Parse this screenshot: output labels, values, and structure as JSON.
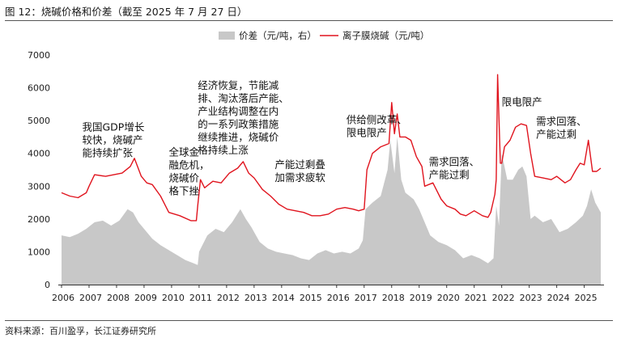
{
  "figure": {
    "title": "图 12：烧碱价格和价差（截至 2025 年 7 月 27 日）",
    "source": "资料来源：百川盈孚，长江证券研究所"
  },
  "chart_data": {
    "type": "area",
    "ylim": [
      0,
      7000
    ],
    "yticks": [
      0,
      1000,
      2000,
      3000,
      4000,
      5000,
      6000,
      7000
    ],
    "xlim": [
      2006.0,
      2025.6
    ],
    "xticks": [
      "2006",
      "2007",
      "2008",
      "2009",
      "2010",
      "2011",
      "2012",
      "2013",
      "2014",
      "2015",
      "2016",
      "2017",
      "2018",
      "2019",
      "2020",
      "2021",
      "2022",
      "2023",
      "2024",
      "2025"
    ],
    "legend_position": "top",
    "series": [
      {
        "name": "价差（元/吨，右）",
        "type": "area",
        "color": "#c8c8c8",
        "x": [
          2006.0,
          2006.3,
          2006.6,
          2006.9,
          2007.2,
          2007.5,
          2007.8,
          2008.1,
          2008.4,
          2008.6,
          2008.8,
          2009.0,
          2009.3,
          2009.6,
          2009.9,
          2010.2,
          2010.5,
          2010.8,
          2010.95,
          2011.0,
          2011.3,
          2011.6,
          2011.9,
          2012.2,
          2012.5,
          2012.7,
          2012.9,
          2013.2,
          2013.5,
          2013.8,
          2014.1,
          2014.4,
          2014.7,
          2015.0,
          2015.3,
          2015.6,
          2015.9,
          2016.2,
          2016.5,
          2016.8,
          2016.95,
          2017.05,
          2017.3,
          2017.6,
          2017.85,
          2017.95,
          2018.1,
          2018.2,
          2018.35,
          2018.5,
          2018.8,
          2019.0,
          2019.2,
          2019.4,
          2019.7,
          2020.0,
          2020.3,
          2020.6,
          2020.9,
          2021.2,
          2021.5,
          2021.7,
          2021.8,
          2021.9,
          2022.0,
          2022.2,
          2022.4,
          2022.6,
          2022.75,
          2022.9,
          2023.05,
          2023.2,
          2023.5,
          2023.8,
          2024.1,
          2024.4,
          2024.7,
          2024.95,
          2025.1,
          2025.25,
          2025.4,
          2025.6
        ],
        "values": [
          1500,
          1450,
          1550,
          1700,
          1900,
          1950,
          1800,
          1950,
          2300,
          2200,
          1900,
          1700,
          1400,
          1200,
          1050,
          900,
          750,
          650,
          600,
          1000,
          1500,
          1700,
          1600,
          1900,
          2300,
          2000,
          1750,
          1300,
          1100,
          1000,
          950,
          900,
          800,
          750,
          950,
          1050,
          950,
          1000,
          950,
          1100,
          1350,
          2300,
          2500,
          2700,
          3500,
          4400,
          3400,
          4500,
          3200,
          2800,
          2600,
          2300,
          1900,
          1500,
          1300,
          1200,
          1050,
          800,
          900,
          800,
          650,
          800,
          2400,
          1800,
          4000,
          3200,
          3200,
          3500,
          3600,
          3300,
          2000,
          2100,
          1900,
          2000,
          1600,
          1700,
          1900,
          2100,
          2400,
          2900,
          2500,
          2200
        ]
      },
      {
        "name": "离子膜烧碱（元/吨）",
        "type": "line",
        "color": "#e0141e",
        "x": [
          2006.0,
          2006.3,
          2006.6,
          2006.9,
          2007.0,
          2007.2,
          2007.6,
          2007.9,
          2008.2,
          2008.5,
          2008.65,
          2008.9,
          2009.1,
          2009.3,
          2009.6,
          2009.9,
          2010.3,
          2010.7,
          2010.9,
          2010.95,
          2011.05,
          2011.2,
          2011.5,
          2011.8,
          2012.1,
          2012.4,
          2012.6,
          2012.8,
          2013.0,
          2013.3,
          2013.6,
          2013.9,
          2014.2,
          2014.5,
          2014.8,
          2015.1,
          2015.4,
          2015.7,
          2016.0,
          2016.3,
          2016.6,
          2016.8,
          2017.0,
          2017.1,
          2017.3,
          2017.6,
          2017.9,
          2018.0,
          2018.1,
          2018.2,
          2018.3,
          2018.5,
          2018.7,
          2018.9,
          2019.1,
          2019.2,
          2019.5,
          2019.8,
          2020.0,
          2020.3,
          2020.5,
          2020.7,
          2021.0,
          2021.3,
          2021.5,
          2021.6,
          2021.75,
          2021.8,
          2021.85,
          2021.95,
          2022.0,
          2022.1,
          2022.3,
          2022.5,
          2022.7,
          2022.9,
          2023.05,
          2023.2,
          2023.5,
          2023.8,
          2024.0,
          2024.3,
          2024.5,
          2024.7,
          2024.85,
          2025.0,
          2025.15,
          2025.3,
          2025.45,
          2025.6
        ],
        "values": [
          2800,
          2700,
          2650,
          2800,
          3000,
          3350,
          3300,
          3350,
          3400,
          3600,
          3850,
          3300,
          3100,
          3050,
          2700,
          2200,
          2100,
          1950,
          1950,
          2400,
          3200,
          2950,
          3150,
          3100,
          3400,
          3550,
          3750,
          3400,
          3250,
          2900,
          2700,
          2450,
          2300,
          2250,
          2200,
          2100,
          2100,
          2150,
          2300,
          2350,
          2300,
          2250,
          2300,
          3500,
          4000,
          4200,
          4300,
          5550,
          4600,
          5200,
          4500,
          4500,
          4400,
          3900,
          3600,
          3000,
          3100,
          2600,
          2400,
          2300,
          2150,
          2100,
          2250,
          2100,
          2050,
          2200,
          2750,
          3200,
          6400,
          3700,
          3700,
          4200,
          4400,
          4800,
          4900,
          4850,
          4000,
          3300,
          3250,
          3200,
          3300,
          3100,
          3200,
          3500,
          3700,
          3650,
          4400,
          3450,
          3450,
          3550
        ]
      }
    ],
    "annotations": [
      {
        "lines": [
          "我国GDP增长",
          "较快，烧碱产",
          "能持续扩张"
        ],
        "x": 2006.75,
        "y": 4700
      },
      {
        "lines": [
          "全球金",
          "融危机，",
          "烧碱价",
          "格下挫"
        ],
        "x": 2009.9,
        "y": 3930
      },
      {
        "lines": [
          "经济恢复，节能减",
          "排、淘汰落后产能、",
          "产业结构调整在内",
          "的一系列政策措施",
          "继续推进，烧碱价",
          "格持续上涨"
        ],
        "x": 2010.95,
        "y": 5970
      },
      {
        "lines": [
          "产能过剩叠",
          "加需求疲软"
        ],
        "x": 2013.75,
        "y": 3550
      },
      {
        "lines": [
          "供给侧改革、",
          "限电限产"
        ],
        "x": 2016.35,
        "y": 4920
      },
      {
        "lines": [
          "需求回落、",
          "产能过剩"
        ],
        "x": 2019.35,
        "y": 3630
      },
      {
        "lines": [
          "限电限产"
        ],
        "x": 2022.0,
        "y": 5460
      },
      {
        "lines": [
          "需求回落、",
          "产能过剩"
        ],
        "x": 2023.25,
        "y": 4870
      }
    ]
  }
}
